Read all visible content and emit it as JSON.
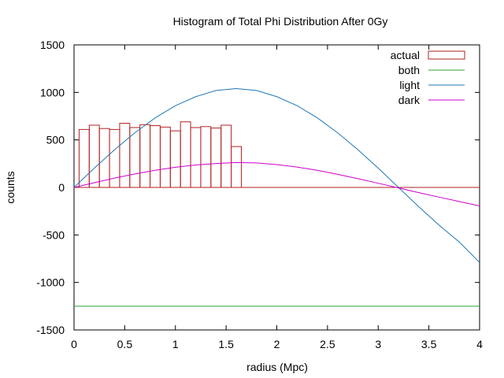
{
  "chart_data": {
    "type": "bar",
    "title": "Histogram of Total Phi Distribution After 0Gy",
    "xlabel": "radius (Mpc)",
    "ylabel": "counts",
    "xlim": [
      0,
      4
    ],
    "ylim": [
      -1500,
      1500
    ],
    "x_ticks": [
      0,
      0.5,
      1,
      1.5,
      2,
      2.5,
      3,
      3.5,
      4
    ],
    "x_tick_labels": [
      "0",
      "0.5",
      "1",
      "1.5",
      "2",
      "2.5",
      "3",
      "3.5",
      "4"
    ],
    "y_ticks": [
      -1500,
      -1000,
      -500,
      0,
      500,
      1000,
      1500
    ],
    "y_tick_labels": [
      "-1500",
      "-1000",
      "-500",
      "0",
      "500",
      "1000",
      "1500"
    ],
    "grid": false,
    "legend_position": "top-right",
    "histogram": {
      "name": "actual",
      "color": "#b22222",
      "bin_width": 0.1,
      "bin_starts": [
        0.05,
        0.15,
        0.25,
        0.35,
        0.45,
        0.55,
        0.65,
        0.75,
        0.85,
        0.95,
        1.05,
        1.15,
        1.25,
        1.35,
        1.45,
        1.55
      ],
      "values": [
        610,
        655,
        620,
        610,
        675,
        630,
        660,
        650,
        635,
        595,
        690,
        630,
        640,
        625,
        655,
        430
      ]
    },
    "series": [
      {
        "name": "both",
        "color": "#2ca02c",
        "type": "line",
        "x": [
          0,
          4
        ],
        "y": [
          -1250,
          -1250
        ]
      },
      {
        "name": "light",
        "color": "#1f77b4",
        "type": "line",
        "x": [
          0,
          0.2,
          0.4,
          0.6,
          0.8,
          1.0,
          1.2,
          1.4,
          1.6,
          1.8,
          2.0,
          2.2,
          2.4,
          2.6,
          2.8,
          3.0,
          3.2,
          3.4,
          3.6,
          3.8,
          4.0
        ],
        "y": [
          0,
          203,
          397,
          575,
          732,
          860,
          955,
          1020,
          1040,
          1020,
          955,
          860,
          732,
          575,
          397,
          203,
          0,
          -203,
          -397,
          -575,
          -790
        ]
      },
      {
        "name": "dark",
        "color": "#cc00cc",
        "type": "line",
        "x": [
          0,
          0.2,
          0.4,
          0.6,
          0.8,
          1.0,
          1.2,
          1.4,
          1.6,
          1.8,
          2.0,
          2.2,
          2.4,
          2.6,
          2.8,
          3.0,
          3.2,
          3.4,
          3.6,
          3.8,
          4.0
        ],
        "y": [
          0,
          50,
          98,
          142,
          180,
          212,
          236,
          252,
          262,
          258,
          240,
          214,
          180,
          138,
          92,
          44,
          -5,
          -55,
          -102,
          -148,
          -195
        ]
      }
    ],
    "zero_line": {
      "color": "#b22222",
      "y": 0
    }
  }
}
